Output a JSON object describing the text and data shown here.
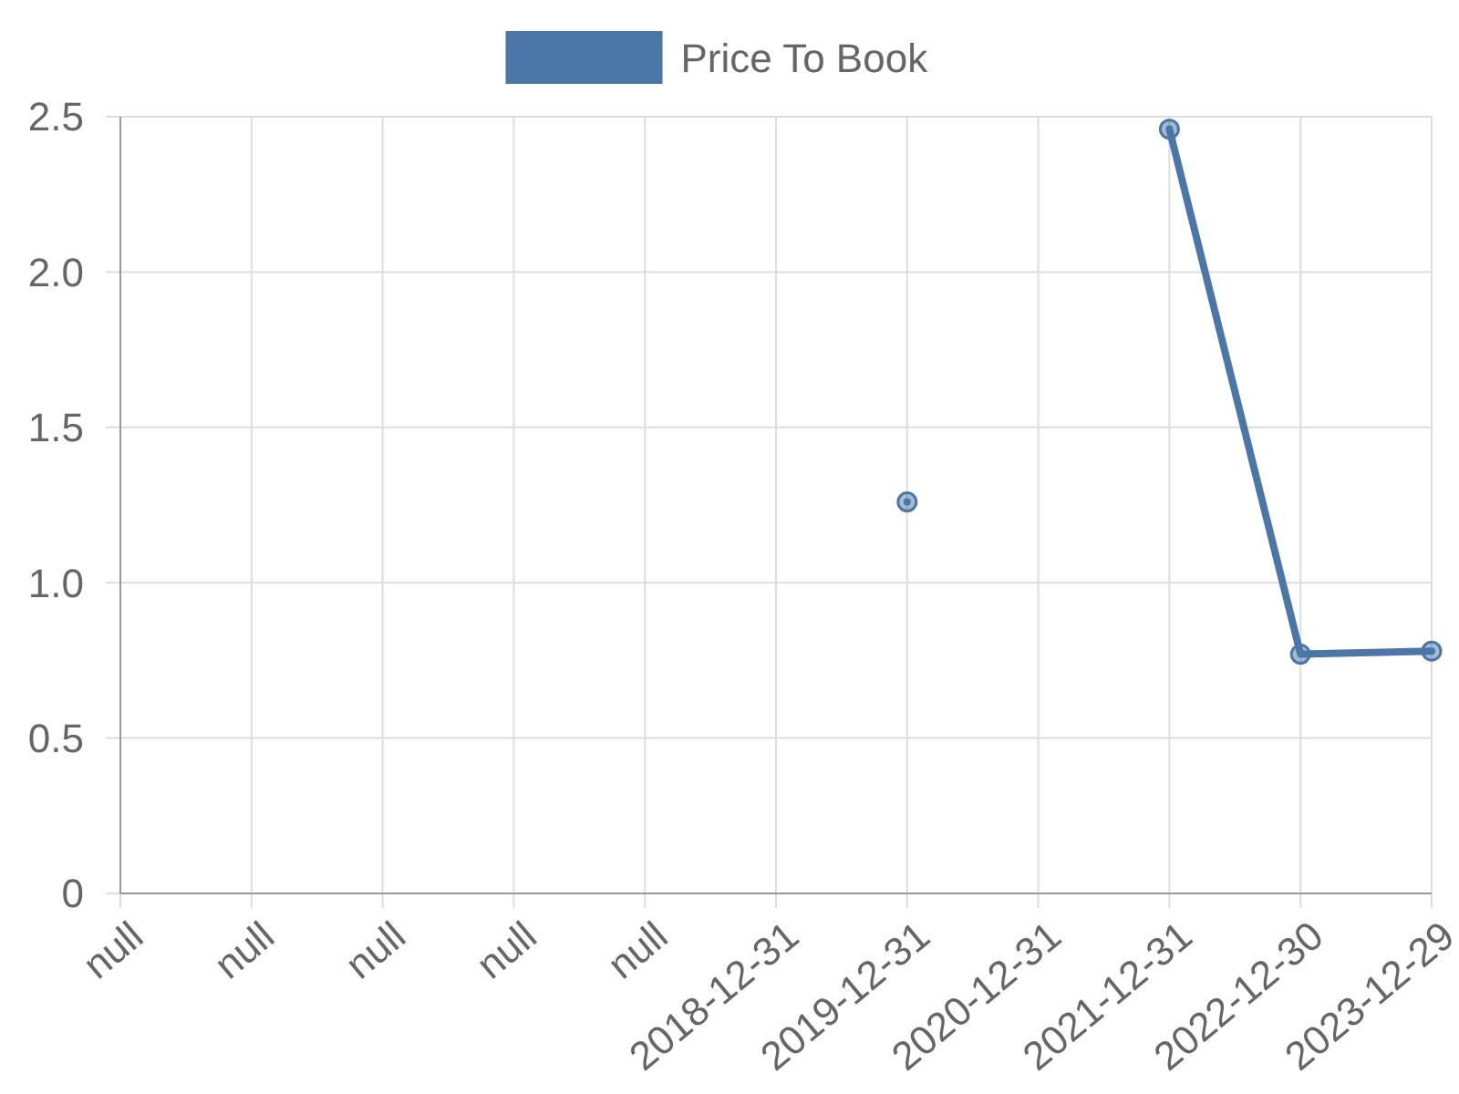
{
  "chart_data": {
    "type": "line",
    "categories": [
      "null",
      "null",
      "null",
      "null",
      "null",
      "2018-12-31",
      "2019-12-31",
      "2020-12-31",
      "2021-12-31",
      "2022-12-30",
      "2023-12-29"
    ],
    "series": [
      {
        "name": "Price To Book",
        "color": "#4a76a8",
        "values": [
          null,
          null,
          null,
          null,
          null,
          null,
          1.26,
          null,
          2.46,
          0.77,
          0.78
        ]
      }
    ],
    "ylim": [
      0,
      2.5
    ],
    "yticks": [
      0,
      {
        "value": 0.5,
        "label": "0.5"
      },
      {
        "value": 1,
        "label": "1.0"
      },
      {
        "value": 1.5,
        "label": "1.5"
      },
      {
        "value": 2,
        "label": "2.0"
      },
      {
        "value": 2.5,
        "label": "2.5"
      }
    ],
    "grid": true,
    "legend": "top",
    "marker": "circle",
    "line_style": "solid"
  }
}
